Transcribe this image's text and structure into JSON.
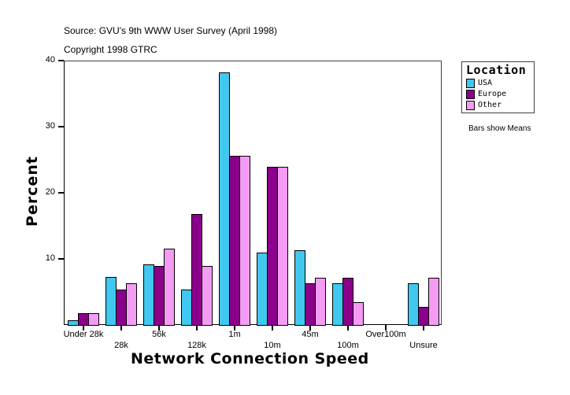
{
  "header": {
    "source": "Source: GVU's 9th WWW User Survey (April 1998)",
    "copyright": "Copyright 1998 GTRC"
  },
  "legend": {
    "title": "Location",
    "items": [
      {
        "label": "USA",
        "color": "#40C8F0"
      },
      {
        "label": "Europe",
        "color": "#8B008B"
      },
      {
        "label": "Other",
        "color": "#F49CF4"
      }
    ],
    "note": "Bars show Means"
  },
  "chart_data": {
    "type": "bar",
    "title": "",
    "xlabel": "Network Connection Speed",
    "ylabel": "Percent",
    "ylim": [
      0,
      40
    ],
    "yticks": [
      10,
      20,
      30,
      40
    ],
    "grid": false,
    "legend_position": "right",
    "categories": [
      "Under 28k",
      "28k",
      "56k",
      "128k",
      "1m",
      "10m",
      "45m",
      "100m",
      "Over100m",
      "Unsure"
    ],
    "series": [
      {
        "name": "USA",
        "color": "#40C8F0",
        "values": [
          0.7,
          7.3,
          9.2,
          5.3,
          38.2,
          11.0,
          11.3,
          6.3,
          0,
          6.3
        ]
      },
      {
        "name": "Europe",
        "color": "#8B008B",
        "values": [
          1.8,
          5.3,
          8.9,
          16.8,
          25.6,
          23.9,
          6.3,
          7.1,
          0,
          2.7
        ]
      },
      {
        "name": "Other",
        "color": "#F49CF4",
        "values": [
          1.8,
          6.3,
          11.6,
          8.9,
          25.6,
          23.9,
          7.1,
          3.5,
          0,
          7.1
        ]
      }
    ]
  }
}
